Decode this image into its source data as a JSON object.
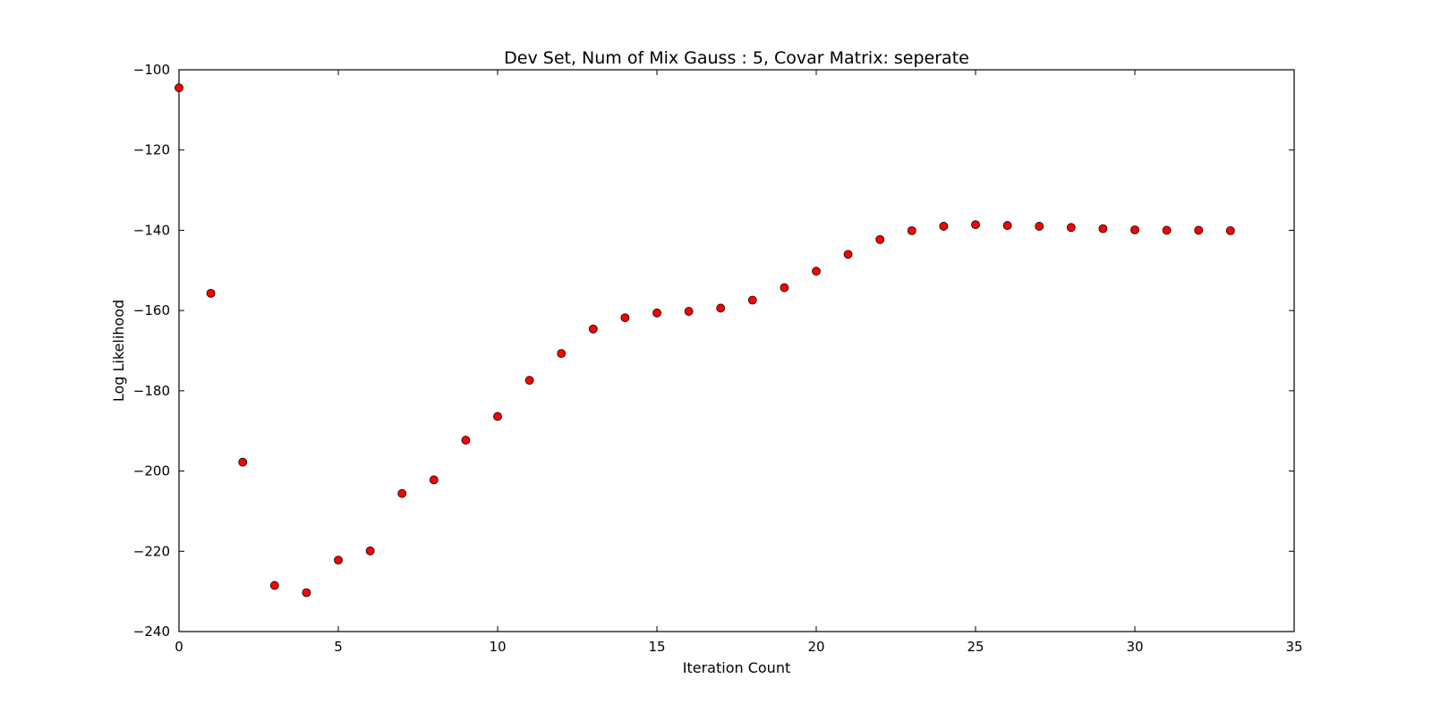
{
  "chart_data": {
    "type": "scatter",
    "title": "Dev Set, Num of Mix Gauss : 5, Covar Matrix: seperate",
    "xlabel": "Iteration Count",
    "ylabel": "Log Likelihood",
    "xlim": [
      0,
      35
    ],
    "ylim": [
      -240,
      -100
    ],
    "xticks": [
      0,
      5,
      10,
      15,
      20,
      25,
      30,
      35
    ],
    "yticks": [
      -100,
      -120,
      -140,
      -160,
      -180,
      -200,
      -220,
      -240
    ],
    "xtick_labels": [
      "0",
      "5",
      "10",
      "15",
      "20",
      "25",
      "30",
      "35"
    ],
    "ytick_labels": [
      "−100",
      "−120",
      "−140",
      "−160",
      "−180",
      "−200",
      "−220",
      "−240"
    ],
    "grid": false,
    "legend": false,
    "marker_color": "#ff0000",
    "marker_edge_color": "#000000",
    "x": [
      0,
      1,
      2,
      3,
      4,
      5,
      6,
      7,
      8,
      9,
      10,
      11,
      12,
      13,
      14,
      15,
      16,
      17,
      18,
      19,
      20,
      21,
      22,
      23,
      24,
      25,
      26,
      27,
      28,
      29,
      30,
      31,
      32,
      33
    ],
    "y": [
      -104.5,
      -155.7,
      -197.8,
      -228.5,
      -230.3,
      -222.2,
      -219.9,
      -205.6,
      -202.2,
      -192.3,
      -186.4,
      -177.4,
      -170.7,
      -164.6,
      -161.8,
      -160.6,
      -160.2,
      -159.4,
      -157.4,
      -154.3,
      -150.2,
      -146.0,
      -142.3,
      -140.1,
      -139.0,
      -138.6,
      -138.8,
      -139.0,
      -139.3,
      -139.6,
      -139.9,
      -140.0,
      -140.0,
      -140.1
    ]
  }
}
